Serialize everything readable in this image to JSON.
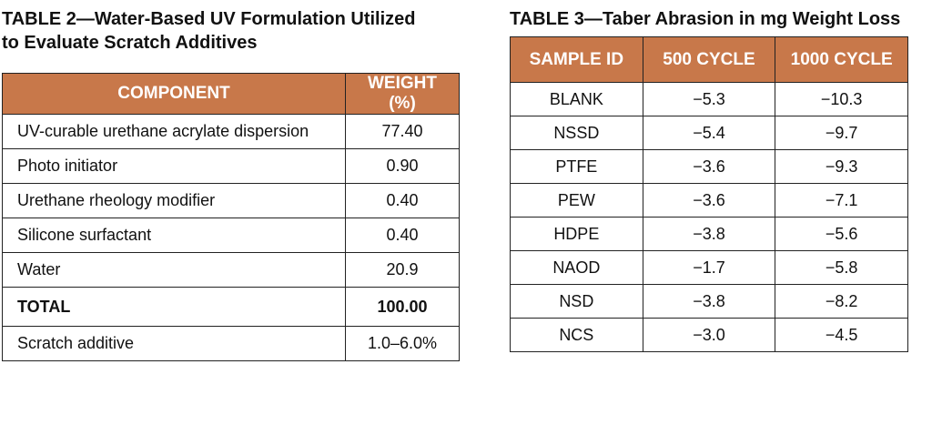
{
  "table2": {
    "title": "TABLE 2—Water-Based UV Formulation Utilized to Evaluate Scratch Additives",
    "columns": [
      "COMPONENT",
      "WEIGHT (%)"
    ],
    "rows": [
      [
        "UV-curable urethane acrylate dispersion",
        "77.40"
      ],
      [
        "Photo initiator",
        "0.90"
      ],
      [
        "Urethane rheology modifier",
        "0.40"
      ],
      [
        "Silicone surfactant",
        "0.40"
      ],
      [
        "Water",
        "20.9"
      ],
      [
        "TOTAL",
        "100.00"
      ],
      [
        "Scratch additive",
        "1.0–6.0%"
      ]
    ]
  },
  "table3": {
    "title": "TABLE 3—Taber Abrasion in mg Weight Loss",
    "columns": [
      "SAMPLE ID",
      "500 CYCLE",
      "1000 CYCLE"
    ],
    "rows": [
      [
        "BLANK",
        "−5.3",
        "−10.3"
      ],
      [
        "NSSD",
        "−5.4",
        "−9.7"
      ],
      [
        "PTFE",
        "−3.6",
        "−9.3"
      ],
      [
        "PEW",
        "−3.6",
        "−7.1"
      ],
      [
        "HDPE",
        "−3.8",
        "−5.6"
      ],
      [
        "NAOD",
        "−1.7",
        "−5.8"
      ],
      [
        "NSD",
        "−3.8",
        "−8.2"
      ],
      [
        "NCS",
        "−3.0",
        "−4.5"
      ]
    ]
  }
}
